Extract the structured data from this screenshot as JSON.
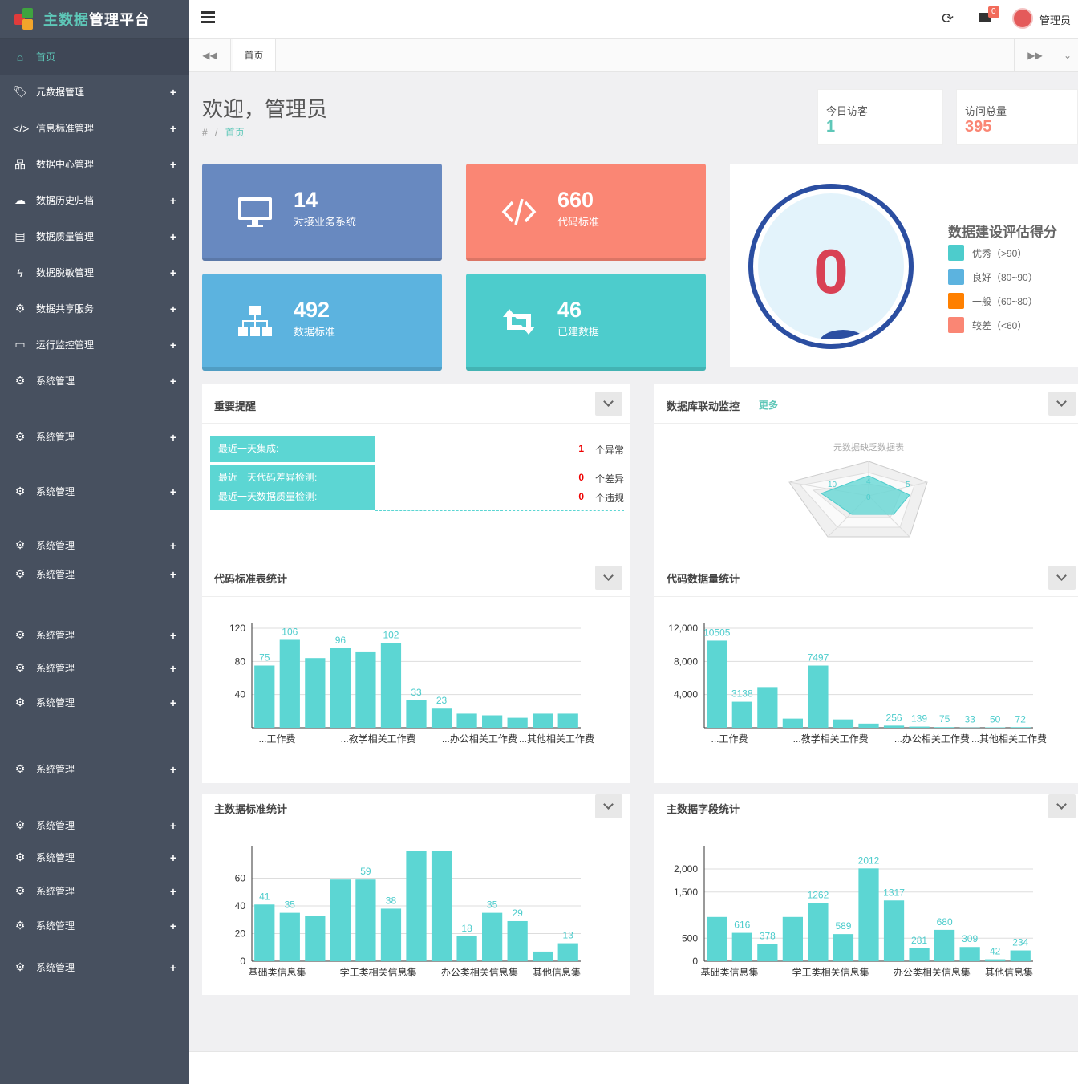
{
  "brand": {
    "title_highlight": "主数据",
    "title_rest": "管理平台"
  },
  "sidebar": {
    "home": "首页",
    "items": [
      {
        "label": "元数据管理",
        "icon": "tag-icon",
        "glyph": "🏷",
        "top": 92
      },
      {
        "label": "信息标准管理",
        "icon": "code-icon",
        "glyph": "</>",
        "top": 137
      },
      {
        "label": "数据中心管理",
        "icon": "sitemap-icon",
        "glyph": "品",
        "top": 182
      },
      {
        "label": "数据历史归档",
        "icon": "cloud-upload-icon",
        "glyph": "☁",
        "top": 227
      },
      {
        "label": "数据质量管理",
        "icon": "book-icon",
        "glyph": "▤",
        "top": 272
      },
      {
        "label": "数据脱敏管理",
        "icon": "bolt-icon",
        "glyph": "ϟ",
        "top": 317
      },
      {
        "label": "数据共享服务",
        "icon": "gear-icon",
        "glyph": "⚙",
        "top": 362
      },
      {
        "label": "运行监控管理",
        "icon": "monitor-icon",
        "glyph": "▭",
        "top": 407
      },
      {
        "label": "系统管理",
        "icon": "gears-icon",
        "glyph": "⚙",
        "top": 452
      },
      {
        "label": "系统管理",
        "icon": "gears-icon",
        "glyph": "⚙",
        "top": 522
      },
      {
        "label": "系统管理",
        "icon": "gears-icon",
        "glyph": "⚙",
        "top": 590
      },
      {
        "label": "系统管理",
        "icon": "gears-icon",
        "glyph": "⚙",
        "top": 657
      },
      {
        "label": "系统管理",
        "icon": "gears-icon",
        "glyph": "⚙",
        "top": 693
      },
      {
        "label": "系统管理",
        "icon": "gears-icon",
        "glyph": "⚙",
        "top": 769
      },
      {
        "label": "系统管理",
        "icon": "gears-icon",
        "glyph": "⚙",
        "top": 810
      },
      {
        "label": "系统管理",
        "icon": "gears-icon",
        "glyph": "⚙",
        "top": 853
      },
      {
        "label": "系统管理",
        "icon": "gears-icon",
        "glyph": "⚙",
        "top": 936
      },
      {
        "label": "系统管理",
        "icon": "gears-icon",
        "glyph": "⚙",
        "top": 1006
      },
      {
        "label": "系统管理",
        "icon": "gears-icon",
        "glyph": "⚙",
        "top": 1046
      },
      {
        "label": "系统管理",
        "icon": "gears-icon",
        "glyph": "⚙",
        "top": 1088
      },
      {
        "label": "系统管理",
        "icon": "gears-icon",
        "glyph": "⚙",
        "top": 1131
      },
      {
        "label": "系统管理",
        "icon": "gears-icon",
        "glyph": "⚙",
        "top": 1183
      }
    ]
  },
  "topbar": {
    "user": "管理员",
    "mail_count": "0"
  },
  "tabs": {
    "home": "首页"
  },
  "welcome": {
    "title": "欢迎，管理员",
    "breadcrumb_root": "#",
    "breadcrumb_sep": "/",
    "breadcrumb_current": "首页"
  },
  "visits": {
    "today_label": "今日访客",
    "today_value": "1",
    "total_label": "访问总量",
    "total_value": "395"
  },
  "tiles": [
    {
      "num": "14",
      "label": "对接业务系统",
      "color": "#6889c0"
    },
    {
      "num": "660",
      "label": "代码标准",
      "color": "#fa8674"
    },
    {
      "num": "492",
      "label": "数据标准",
      "color": "#5cb3df"
    },
    {
      "num": "46",
      "label": "已建数据",
      "color": "#4dcccc"
    }
  ],
  "score": {
    "value": "0",
    "title": "数据建设评估得分",
    "legend": [
      {
        "label": "优秀（>90）",
        "color": "#4dcccc"
      },
      {
        "label": "良好（80~90）",
        "color": "#5cb3df"
      },
      {
        "label": "一般（60~80）",
        "color": "#ff8000"
      },
      {
        "label": "较差（<60）",
        "color": "#fa8674"
      }
    ]
  },
  "reminder": {
    "title": "重要提醒",
    "rows": [
      {
        "label": "最近一天集成:",
        "count": "1",
        "unit": "个异常"
      },
      {
        "label": "最近一天代码差异检测:",
        "count": "0",
        "unit": "个差异"
      },
      {
        "label": "最近一天数据质量检测:",
        "count": "0",
        "unit": "个违规"
      }
    ]
  },
  "db_monitor": {
    "title": "数据库联动监控",
    "more": "更多",
    "radar_title": "元数据缺乏数据表",
    "radar_labels": [
      "10",
      "4",
      "5",
      "0"
    ]
  },
  "panels": {
    "code_std": "代码标准表统计",
    "code_vol": "代码数据量统计",
    "master_std": "主数据标准统计",
    "master_field": "主数据字段统计"
  },
  "chart_data": [
    {
      "type": "bar",
      "title": "代码标准表统计",
      "values": [
        75,
        106,
        84,
        96,
        92,
        102,
        33,
        23,
        17,
        15,
        12,
        17,
        17
      ],
      "labels": [
        "75",
        "106",
        "",
        "96",
        "",
        "102",
        "33",
        "23",
        "",
        "",
        "",
        "",
        ""
      ],
      "ylim": [
        0,
        120
      ],
      "yticks": [
        "40",
        "80",
        "120"
      ],
      "xlabels": [
        "...工作费",
        "...教学相关工作费",
        "...办公相关工作费",
        "...其他相关工作费"
      ]
    },
    {
      "type": "bar",
      "title": "代码数据量统计",
      "values": [
        10505,
        3138,
        4900,
        1100,
        7497,
        1000,
        500,
        256,
        139,
        75,
        33,
        50,
        72
      ],
      "labels": [
        "10505",
        "3138",
        "",
        "",
        "7497",
        "",
        "",
        "256",
        "139",
        "75",
        "33",
        "50",
        "72"
      ],
      "ylim": [
        0,
        12000
      ],
      "yticks": [
        "4,000",
        "8,000",
        "12,000"
      ],
      "xlabels": [
        "...工作费",
        "...教学相关工作费",
        "...办公相关工作费",
        "...其他相关工作费"
      ]
    },
    {
      "type": "bar",
      "title": "主数据标准统计",
      "values": [
        41,
        35,
        33,
        59,
        59,
        38,
        80,
        80,
        18,
        35,
        29,
        7,
        13
      ],
      "labels": [
        "41",
        "35",
        "",
        "",
        "59",
        "38",
        "",
        "",
        "18",
        "35",
        "29",
        "",
        "13"
      ],
      "ylim": [
        0,
        80
      ],
      "yticks": [
        "0",
        "20",
        "40",
        "60"
      ],
      "xlabels": [
        "基础类信息集",
        "学工类相关信息集",
        "办公类相关信息集",
        "其他信息集"
      ]
    },
    {
      "type": "bar",
      "title": "主数据字段统计",
      "values": [
        960,
        616,
        378,
        960,
        1262,
        589,
        2012,
        1317,
        281,
        680,
        309,
        42,
        234
      ],
      "labels": [
        "",
        "616",
        "378",
        "",
        "1262",
        "589",
        "2012",
        "1317",
        "281",
        "680",
        "309",
        "42",
        "234"
      ],
      "ylim": [
        0,
        2400
      ],
      "yticks": [
        "0",
        "500",
        "1,500",
        "2,000"
      ],
      "xlabels": [
        "基础类信息集",
        "学工类相关信息集",
        "办公类相关信息集",
        "其他信息集"
      ]
    }
  ]
}
